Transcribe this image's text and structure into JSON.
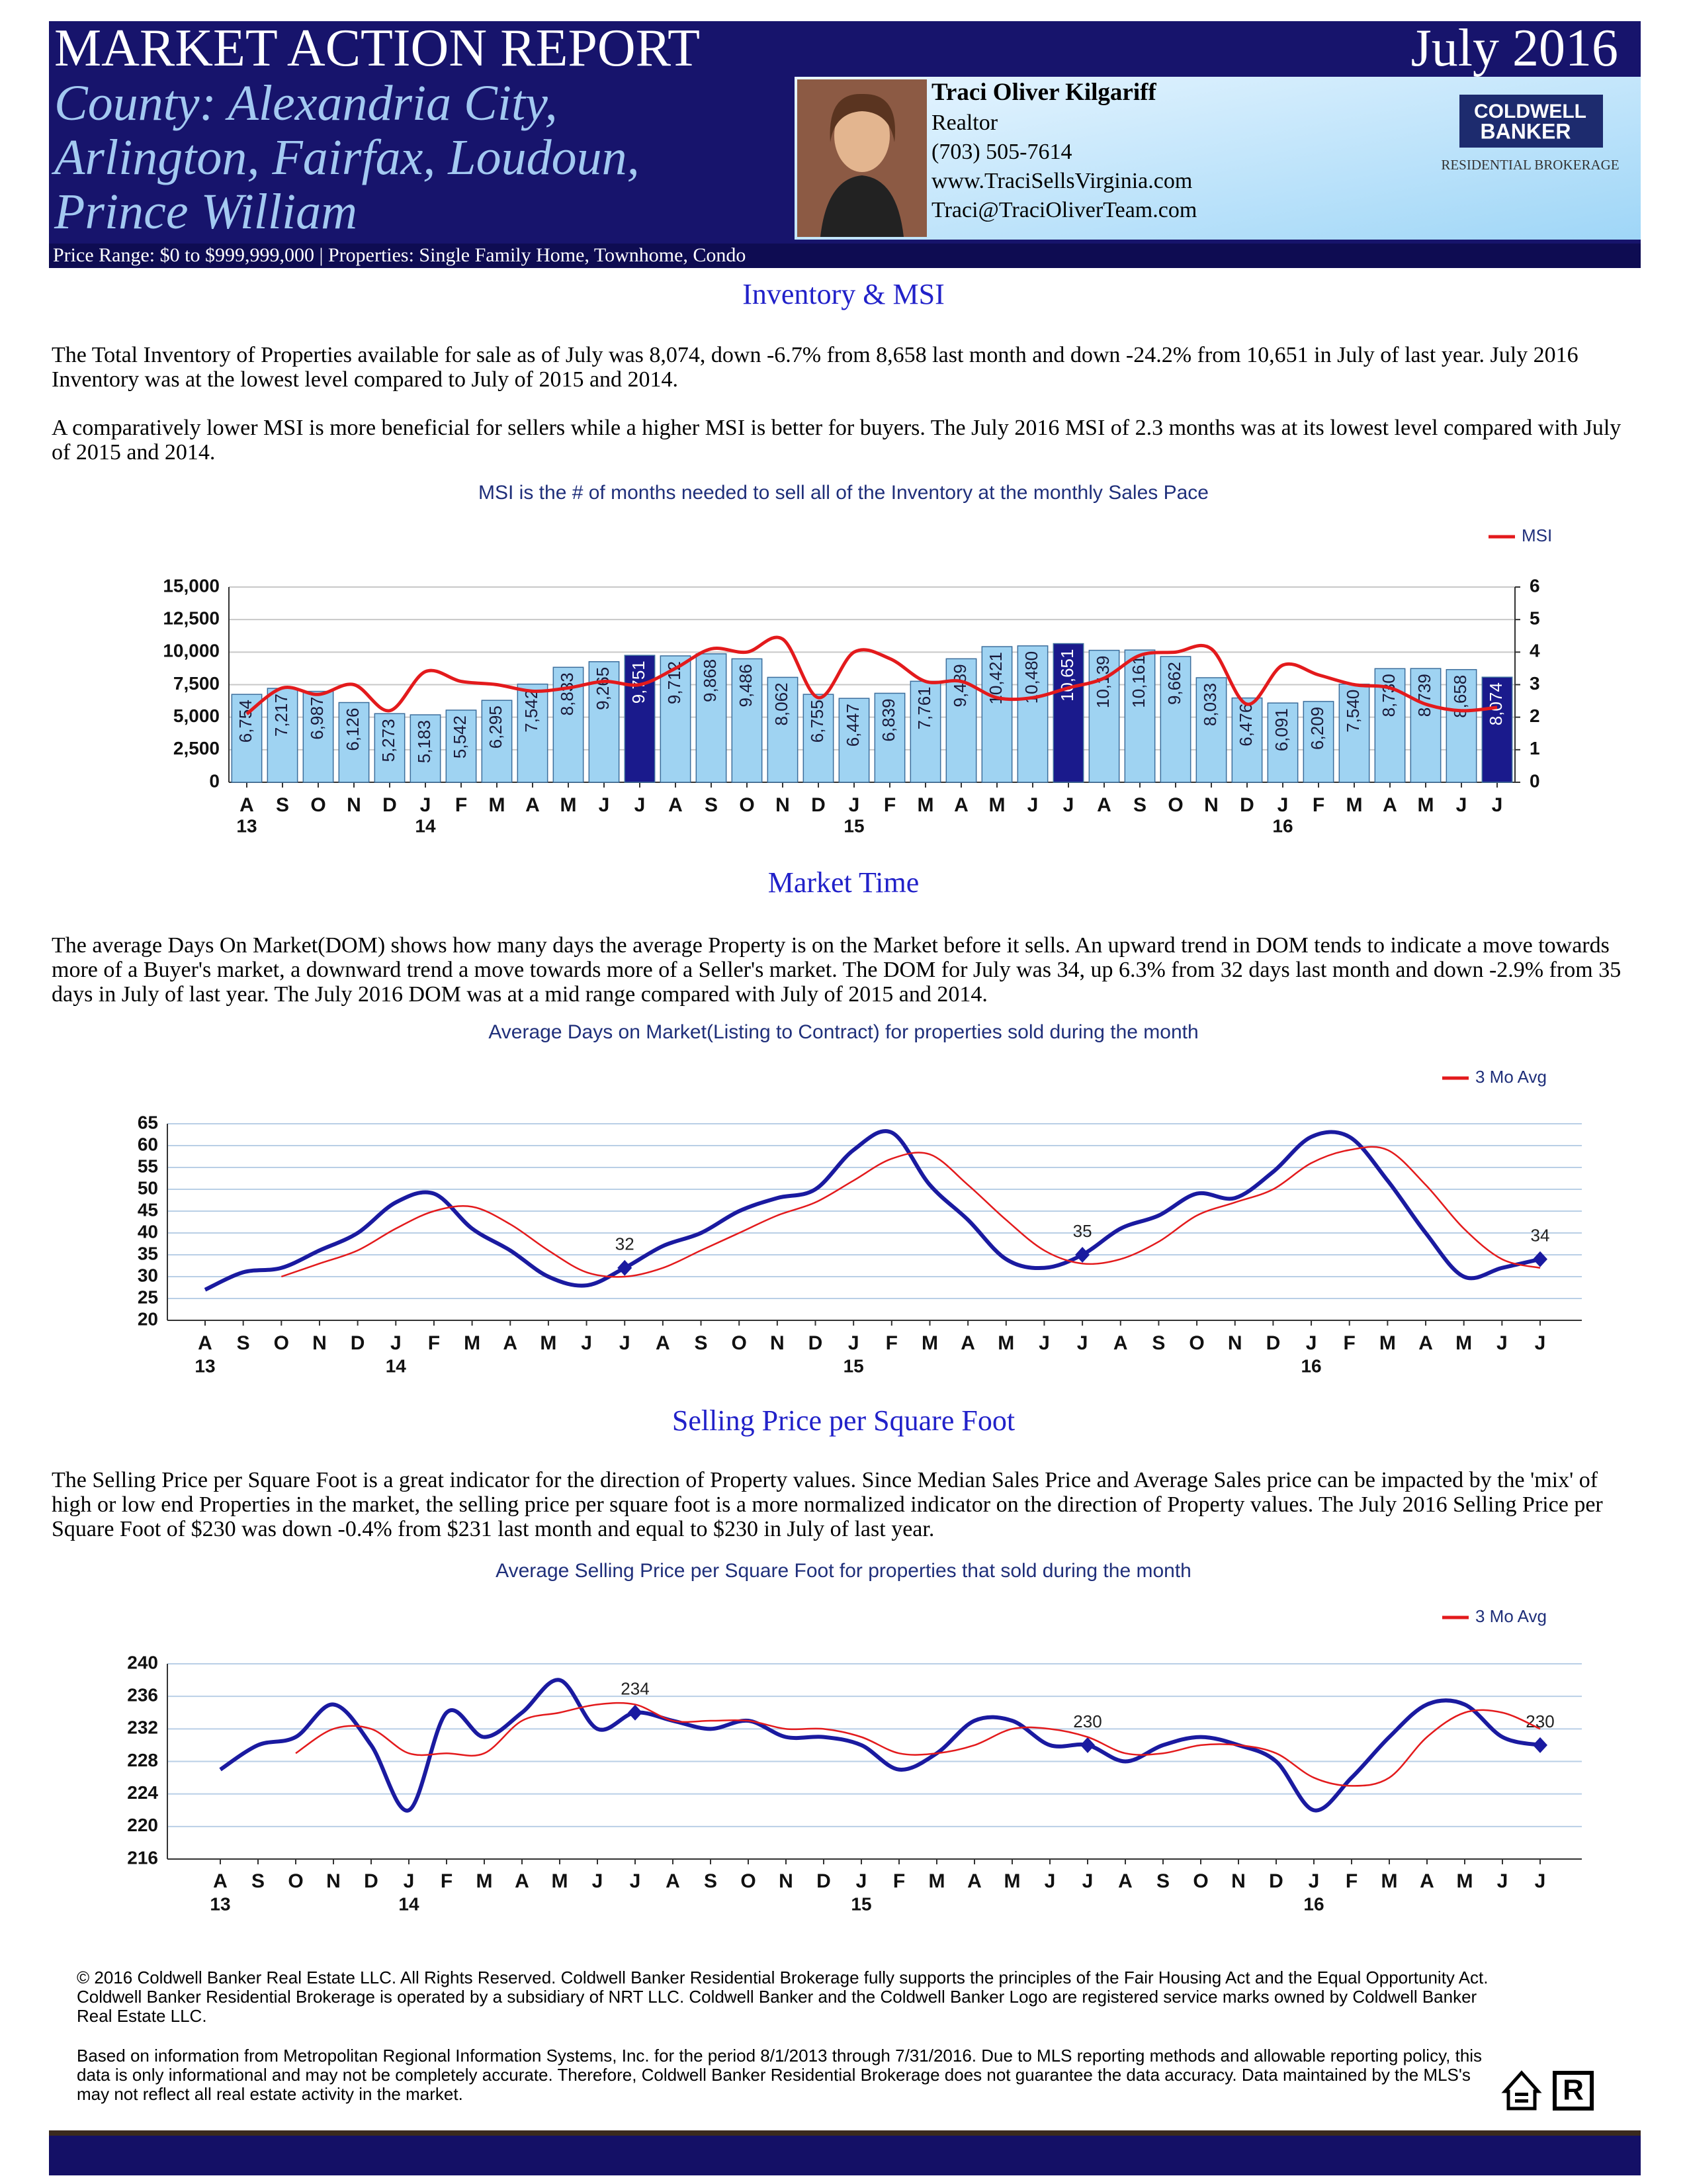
{
  "header": {
    "title": "MARKET ACTION REPORT",
    "date": "July 2016",
    "county_lines": [
      "County: Alexandria City,",
      "Arlington, Fairfax, Loudoun,",
      "Prince William"
    ],
    "agent": {
      "name": "Traci Oliver Kilgariff",
      "role": "Realtor",
      "phone": "(703) 505-7614",
      "website": "www.TraciSellsVirginia.com",
      "email": "Traci@TraciOliverTeam.com"
    },
    "logo": {
      "line1": "COLDWELL",
      "line2": "BANKER",
      "tagline": "RESIDENTIAL BROKERAGE"
    },
    "price_range": "Price Range: $0 to $999,999,000 | Properties: Single Family Home, Townhome, Condo"
  },
  "sections": [
    {
      "heading": "Inventory & MSI",
      "paragraphs": [
        "The Total Inventory of Properties available for sale as of July was 8,074, down -6.7% from 8,658 last month and down -24.2% from 10,651 in July of last year.  July 2016 Inventory was at the lowest level compared to July of 2015 and 2014.",
        "A comparatively lower MSI is more beneficial for sellers while a higher MSI is better for buyers.  The July 2016 MSI of 2.3 months was at its lowest level compared with July of 2015 and 2014."
      ]
    },
    {
      "heading": "Market Time",
      "paragraphs": [
        "The average Days On Market(DOM) shows how many days the average Property is on the Market before it sells.  An upward trend in DOM tends to indicate a move towards more of a Buyer's market, a downward trend a move towards more of a Seller's market.  The DOM for July was 34, up 6.3% from 32 days last month and down -2.9% from 35 days in July of last year.  The July 2016 DOM was at a mid range compared with July of 2015 and 2014."
      ]
    },
    {
      "heading": "Selling Price per Square Foot",
      "paragraphs": [
        "The Selling Price per Square Foot is a great indicator for the direction of Property values.  Since Median Sales Price and Average Sales price can be impacted by the 'mix' of high or low end Properties in the market, the selling price per square foot is a more normalized indicator on the direction of Property values.  The July 2016 Selling Price per Square Foot of $230 was down -0.4% from $231 last month and equal to $230 in July of last year."
      ]
    }
  ],
  "chart_data": [
    {
      "type": "bar",
      "title": "MSI is the # of months needed to sell all of the Inventory at the monthly Sales Pace",
      "categories": [
        "A",
        "S",
        "O",
        "N",
        "D",
        "J",
        "F",
        "M",
        "A",
        "M",
        "J",
        "J",
        "A",
        "S",
        "O",
        "N",
        "D",
        "J",
        "F",
        "M",
        "A",
        "M",
        "J",
        "J",
        "A",
        "S",
        "O",
        "N",
        "D",
        "J",
        "F",
        "M",
        "A",
        "M",
        "J",
        "J"
      ],
      "year_labels": [
        "13",
        null,
        null,
        null,
        null,
        "14",
        null,
        null,
        null,
        null,
        null,
        null,
        null,
        null,
        null,
        null,
        null,
        "15",
        null,
        null,
        null,
        null,
        null,
        null,
        null,
        null,
        null,
        null,
        null,
        "16",
        null,
        null,
        null,
        null,
        null,
        null
      ],
      "series": [
        {
          "type": "bar",
          "values": [
            6754,
            7217,
            6987,
            6126,
            5273,
            5183,
            5542,
            6295,
            7542,
            8833,
            9265,
            9751,
            9712,
            9868,
            9486,
            8062,
            6755,
            6447,
            6839,
            7761,
            9489,
            10421,
            10480,
            10651,
            10139,
            10161,
            9662,
            8033,
            6476,
            6091,
            6209,
            7540,
            8730,
            8739,
            8658,
            8074
          ],
          "value_labels": [
            "6,754",
            "7,217",
            "6,987",
            "6,126",
            "5,273",
            "5,183",
            "5,542",
            "6,295",
            "7,542",
            "8,833",
            "9,265",
            "9,751",
            "9,712",
            "9,868",
            "9,486",
            "8,062",
            "6,755",
            "6,447",
            "6,839",
            "7,761",
            "9,489",
            "10,421",
            "10,480",
            "10,651",
            "10,139",
            "10,161",
            "9,662",
            "8,033",
            "6,476",
            "6,091",
            "6,209",
            "7,540",
            "8,730",
            "8,739",
            "8,658",
            "8,074"
          ],
          "colors": [
            "#9fd3f2",
            "#9fd3f2",
            "#9fd3f2",
            "#9fd3f2",
            "#9fd3f2",
            "#9fd3f2",
            "#9fd3f2",
            "#9fd3f2",
            "#9fd3f2",
            "#9fd3f2",
            "#9fd3f2",
            "#1a1a8c",
            "#9fd3f2",
            "#9fd3f2",
            "#9fd3f2",
            "#9fd3f2",
            "#9fd3f2",
            "#9fd3f2",
            "#9fd3f2",
            "#9fd3f2",
            "#9fd3f2",
            "#9fd3f2",
            "#9fd3f2",
            "#1a1a8c",
            "#9fd3f2",
            "#9fd3f2",
            "#9fd3f2",
            "#9fd3f2",
            "#9fd3f2",
            "#9fd3f2",
            "#9fd3f2",
            "#9fd3f2",
            "#9fd3f2",
            "#9fd3f2",
            "#9fd3f2",
            "#1a1a8c"
          ]
        },
        {
          "type": "line",
          "name": "MSI",
          "axis": "y2",
          "color": "#e31a1c",
          "values": [
            2.1,
            2.9,
            2.7,
            3.0,
            2.2,
            3.4,
            3.1,
            3.0,
            2.8,
            2.9,
            3.1,
            3.0,
            3.5,
            4.1,
            4.0,
            4.4,
            2.6,
            4.0,
            3.8,
            3.1,
            3.1,
            2.6,
            2.6,
            2.9,
            3.2,
            3.9,
            4.0,
            4.1,
            2.4,
            3.6,
            3.3,
            3.0,
            2.9,
            2.4,
            2.2,
            2.3
          ]
        }
      ],
      "ylim": [
        0,
        15000
      ],
      "yticks": [
        0,
        {
          "value": 2500,
          "label": "2,500"
        },
        {
          "value": 5000,
          "label": "5,000"
        },
        {
          "value": 7500,
          "label": "7,500"
        },
        {
          "value": 10000,
          "label": "10,000"
        },
        {
          "value": 12500,
          "label": "12,500"
        },
        {
          "value": 15000,
          "label": "15,000"
        }
      ],
      "y2lim": [
        0,
        6
      ],
      "y2ticks": [
        0,
        1,
        2,
        3,
        4,
        5,
        6
      ],
      "grid": true,
      "legend": "top-right"
    },
    {
      "type": "line",
      "title": "Average Days on Market(Listing to Contract) for properties sold during the month",
      "categories": [
        "A",
        "S",
        "O",
        "N",
        "D",
        "J",
        "F",
        "M",
        "A",
        "M",
        "J",
        "J",
        "A",
        "S",
        "O",
        "N",
        "D",
        "J",
        "F",
        "M",
        "A",
        "M",
        "J",
        "J",
        "A",
        "S",
        "O",
        "N",
        "D",
        "J",
        "F",
        "M",
        "A",
        "M",
        "J",
        "J"
      ],
      "year_labels": [
        "13",
        null,
        null,
        null,
        null,
        "14",
        null,
        null,
        null,
        null,
        null,
        null,
        null,
        null,
        null,
        null,
        null,
        "15",
        null,
        null,
        null,
        null,
        null,
        null,
        null,
        null,
        null,
        null,
        null,
        "16",
        null,
        null,
        null,
        null,
        null,
        null
      ],
      "series": [
        {
          "color": "#1a1aa0",
          "values": [
            27,
            31,
            32,
            36,
            40,
            47,
            49,
            41,
            36,
            30,
            28,
            32,
            37,
            40,
            45,
            48,
            50,
            59,
            63,
            51,
            43,
            34,
            32,
            35,
            41,
            44,
            49,
            48,
            54,
            62,
            62,
            52,
            40,
            30,
            32,
            34
          ],
          "labeled_points": [
            11,
            23,
            35
          ]
        },
        {
          "name": "3 Mo Avg",
          "color": "#e31a1c",
          "values": [
            null,
            null,
            30,
            33,
            36,
            41,
            45,
            46,
            42,
            36,
            31,
            30,
            32,
            36,
            40,
            44,
            47,
            52,
            57,
            58,
            51,
            43,
            36,
            33,
            34,
            38,
            44,
            47,
            50,
            56,
            59,
            59,
            51,
            41,
            34,
            32
          ]
        }
      ],
      "ylim": [
        20,
        65
      ],
      "yticks": [
        20,
        25,
        30,
        35,
        40,
        45,
        50,
        55,
        60,
        65
      ],
      "grid": true,
      "legend": "top-right"
    },
    {
      "type": "line",
      "title": "Average Selling Price per Square Foot for properties that sold during the month",
      "categories": [
        "A",
        "S",
        "O",
        "N",
        "D",
        "J",
        "F",
        "M",
        "A",
        "M",
        "J",
        "J",
        "A",
        "S",
        "O",
        "N",
        "D",
        "J",
        "F",
        "M",
        "A",
        "M",
        "J",
        "J",
        "A",
        "S",
        "O",
        "N",
        "D",
        "J",
        "F",
        "M",
        "A",
        "M",
        "J",
        "J"
      ],
      "year_labels": [
        "13",
        null,
        null,
        null,
        null,
        "14",
        null,
        null,
        null,
        null,
        null,
        null,
        null,
        null,
        null,
        null,
        null,
        "15",
        null,
        null,
        null,
        null,
        null,
        null,
        null,
        null,
        null,
        null,
        null,
        "16",
        null,
        null,
        null,
        null,
        null,
        null
      ],
      "series": [
        {
          "color": "#1a1aa0",
          "values": [
            227,
            230,
            231,
            235,
            230,
            222,
            234,
            231,
            234,
            238,
            232,
            234,
            233,
            232,
            233,
            231,
            231,
            230,
            227,
            229,
            233,
            233,
            230,
            230,
            228,
            230,
            231,
            230,
            228,
            222,
            226,
            231,
            235,
            235,
            231,
            230
          ],
          "labeled_points": [
            11,
            23,
            35
          ]
        },
        {
          "name": "3 Mo Avg",
          "color": "#e31a1c",
          "values": [
            null,
            null,
            229,
            232,
            232,
            229,
            229,
            229,
            233,
            234,
            235,
            235,
            233,
            233,
            233,
            232,
            232,
            231,
            229,
            229,
            230,
            232,
            232,
            231,
            229,
            229,
            230,
            230,
            229,
            226,
            225,
            226,
            231,
            234,
            234,
            232
          ]
        }
      ],
      "ylim": [
        216,
        240
      ],
      "yticks": [
        216,
        220,
        224,
        228,
        232,
        236,
        240
      ],
      "grid": true,
      "legend": "top-right"
    }
  ],
  "footer": {
    "paragraphs": [
      "© 2016 Coldwell Banker Real Estate LLC.   All Rights Reserved. Coldwell Banker Residential Brokerage fully supports the principles of the Fair Housing Act and the Equal Opportunity Act.  Coldwell Banker Residential Brokerage is operated by a subsidiary of NRT LLC.  Coldwell Banker and the Coldwell Banker Logo are registered service marks owned by Coldwell Banker Real Estate LLC.",
      "Based on information from Metropolitan Regional Information Systems, Inc. for the period 8/1/2013 through 7/31/2016.  Due to MLS reporting methods and allowable reporting policy, this data is only informational and may not be completely accurate.  Therefore, Coldwell Banker Residential Brokerage does not guarantee the data accuracy.   Data maintained by the MLS's may not reflect all real estate activity in the market."
    ]
  }
}
